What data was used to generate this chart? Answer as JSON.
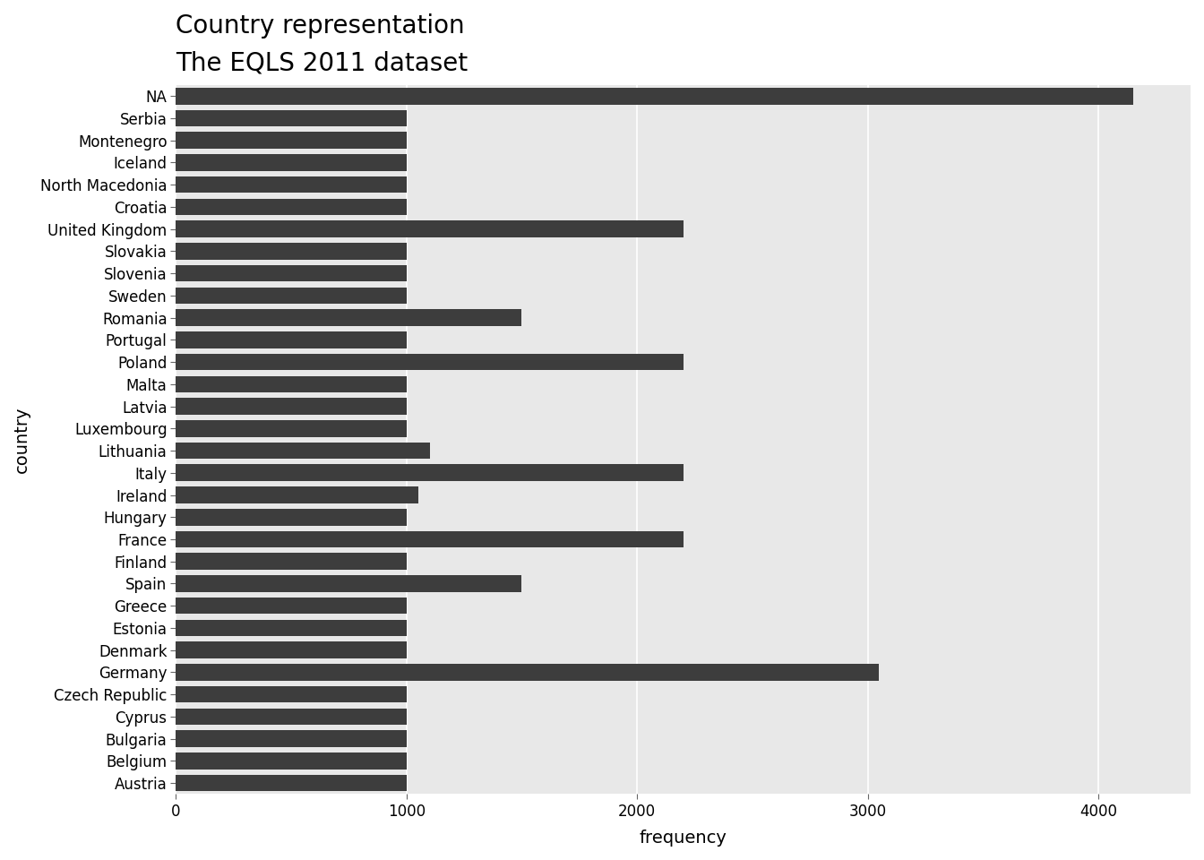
{
  "title": "Country representation",
  "subtitle": "The EQLS 2011 dataset",
  "xlabel": "frequency",
  "ylabel": "country",
  "bar_color": "#3d3d3d",
  "fig_background": "#ffffff",
  "plot_background": "#e8e8e8",
  "categories": [
    "NA",
    "Serbia",
    "Montenegro",
    "Iceland",
    "North Macedonia",
    "Croatia",
    "United Kingdom",
    "Slovakia",
    "Slovenia",
    "Sweden",
    "Romania",
    "Portugal",
    "Poland",
    "Malta",
    "Latvia",
    "Luxembourg",
    "Lithuania",
    "Italy",
    "Ireland",
    "Hungary",
    "France",
    "Finland",
    "Spain",
    "Greece",
    "Estonia",
    "Denmark",
    "Germany",
    "Czech Republic",
    "Cyprus",
    "Bulgaria",
    "Belgium",
    "Austria"
  ],
  "values": [
    4150,
    1000,
    1000,
    1000,
    1000,
    1000,
    2200,
    1000,
    1000,
    1000,
    1500,
    1000,
    2200,
    1000,
    1000,
    1000,
    1100,
    2200,
    1050,
    1000,
    2200,
    1000,
    1500,
    1000,
    1000,
    1000,
    3050,
    1000,
    1000,
    1000,
    1000,
    1000
  ],
  "xlim": [
    0,
    4400
  ],
  "xticks": [
    0,
    1000,
    2000,
    3000,
    4000
  ],
  "title_fontsize": 20,
  "subtitle_fontsize": 16,
  "axis_label_fontsize": 14,
  "tick_fontsize": 12,
  "grid_color": "#ffffff",
  "bar_height": 0.75
}
